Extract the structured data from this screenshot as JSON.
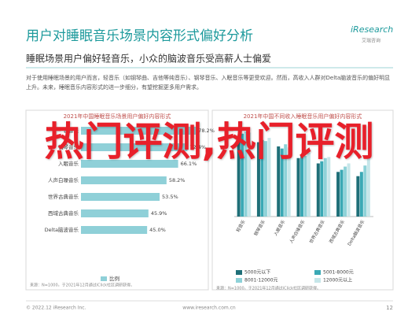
{
  "header": {
    "title": "用户对睡眠音乐场景内容形式偏好分析",
    "logo": "iResearch",
    "logo_sub": "艾瑞咨询",
    "subtitle": "睡眠场景用户偏好轻音乐，小众的脑波音乐受高薪人士偏爱"
  },
  "body": {
    "text": "对于使用睡眠场景的用户而言，轻音乐（如钢琴曲、吉他等纯音乐）、钢琴音乐、入眠音乐等更受欢迎。然而，高收入人群对Delta脑波音乐的偏好明显上升。未来，睡眠音乐内容形式的进一步细分，有望挖掘更多用户需求。"
  },
  "charts": [
    {
      "type": "bar",
      "orientation": "horizontal",
      "title": "2021年中国睡眠音乐场景用户偏好内容形式",
      "categories": [
        "轻音乐",
        "钢琴音乐",
        "入眠音乐",
        "人声白噪音乐",
        "世界古典音乐",
        "西域古典音乐",
        "Delta脑波音乐"
      ],
      "series": [
        {
          "name": "比例",
          "color": "#8fd0d8",
          "values": [
            78.2,
            72.4,
            66.1,
            58.2,
            53.5,
            45.9,
            45.0
          ],
          "value_labels": [
            "78.2%",
            "72.4%",
            "66.1%",
            "58.2%",
            "53.5%",
            "45.9%",
            "45.0%"
          ]
        }
      ],
      "source": "来源：N=1000，于2021年12月通过iClick社区调研获得。"
    },
    {
      "type": "grouped_bar",
      "title": "2021年中国不同收入睡眠音乐用户偏好内容形式",
      "categories": [
        "轻音乐",
        "钢琴音乐",
        "入眠音乐",
        "人声白噪音乐",
        "世界古典音乐",
        "西域古典音乐",
        "Delta脑波音乐"
      ],
      "series": [
        {
          "name": "5000元以下",
          "color": "#1f6f78",
          "values": [
            75,
            70,
            66,
            55,
            50,
            42,
            38
          ]
        },
        {
          "name": "5001-8000元",
          "color": "#3aa9b5",
          "values": [
            78,
            72,
            64,
            58,
            52,
            44,
            42
          ]
        },
        {
          "name": "8001-12000元",
          "color": "#8ed2d8",
          "values": [
            80,
            71,
            68,
            57,
            55,
            47,
            48
          ]
        },
        {
          "name": "12000元以上",
          "color": "#c6e6e9",
          "values": [
            79,
            74,
            65,
            60,
            56,
            50,
            55
          ]
        }
      ],
      "source": "来源：N=1000，于2021年12月通过iClick社区调研获得。"
    }
  ],
  "footer": {
    "copyright": "© 2022.12 iResearch Inc.",
    "site": "www.iresearch.com.cn",
    "page": "12"
  },
  "overlay": {
    "text": "热门评测,热门评测"
  }
}
